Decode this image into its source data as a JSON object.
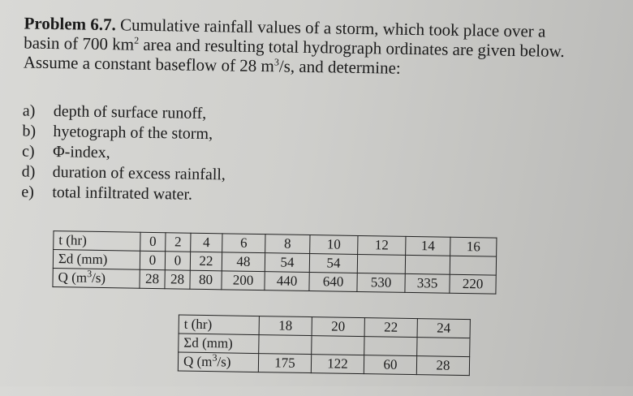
{
  "problem": {
    "title": "Problem 6.7.",
    "line1": " Cumulative rainfall values of a storm, which took place over a",
    "line2a": "basin of 700 km",
    "line2_sup": "2",
    "line2b": " area and resulting total hydrograph ordinates are given below.",
    "line3a": "Assume a constant baseflow of 28 m",
    "line3_sup": "3",
    "line3b": "/s, and determine:"
  },
  "tasks": [
    {
      "label": "a)",
      "text": "depth of surface runoff,"
    },
    {
      "label": "b)",
      "text": "hyetograph of the storm,"
    },
    {
      "label": "c)",
      "text": "Φ-index,"
    },
    {
      "label": "d)",
      "text": "duration of excess rainfall,"
    },
    {
      "label": "e)",
      "text": "total infiltrated water."
    }
  ],
  "table1": {
    "row_t": {
      "label": "t (hr)",
      "values": [
        "0",
        "2",
        "4",
        "6",
        "8",
        "10",
        "12",
        "14",
        "16"
      ]
    },
    "row_sd": {
      "label": "Σd (mm)",
      "values": [
        "0",
        "0",
        "22",
        "48",
        "54",
        "54",
        "",
        "",
        ""
      ]
    },
    "row_q": {
      "label_a": "Q (m",
      "label_sup": "3",
      "label_b": "/s)",
      "values": [
        "28",
        "28",
        "80",
        "200",
        "440",
        "640",
        "530",
        "335",
        "220"
      ]
    }
  },
  "table2": {
    "row_t": {
      "label": "t (hr)",
      "values": [
        "18",
        "20",
        "22",
        "24"
      ]
    },
    "row_sd": {
      "label": "Σd (mm)",
      "values": [
        "",
        "",
        "",
        ""
      ]
    },
    "row_q": {
      "label_a": "Q (m",
      "label_sup": "3",
      "label_b": "/s)",
      "values": [
        "175",
        "122",
        "60",
        "28"
      ]
    }
  }
}
